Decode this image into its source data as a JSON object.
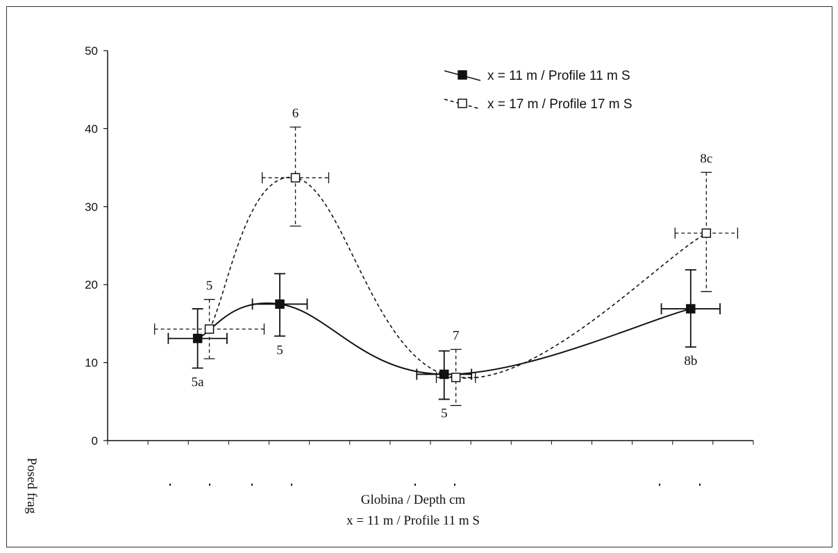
{
  "chart_data": {
    "type": "scatter",
    "title": "",
    "xlabel": "Globina / Depth cm",
    "xlabel_sub": "x = 11 m / Profile 11 m S",
    "ylabel": "Posed frag",
    "ylim": [
      0,
      50
    ],
    "yticks": [
      "0",
      "10",
      "20",
      "30",
      "40",
      "50"
    ],
    "grid": false,
    "legend_position": "top-right",
    "series": [
      {
        "name": "x = 11 m / Profile 11 m S",
        "style": "solid",
        "marker": "filled-square",
        "color": "#111111",
        "points": [
          {
            "x": 2.3,
            "y": 13.1,
            "xerr": 0.75,
            "y_low": 9.3,
            "y_high": 16.9,
            "label": "5a",
            "label_pos": "below"
          },
          {
            "x": 4.4,
            "y": 17.5,
            "xerr": 0.7,
            "y_low": 13.4,
            "y_high": 21.4,
            "label": "5",
            "label_pos": "below"
          },
          {
            "x": 8.6,
            "y": 8.5,
            "xerr": 0.7,
            "y_low": 5.3,
            "y_high": 11.5,
            "label": "5",
            "label_pos": "below"
          },
          {
            "x": 14.9,
            "y": 16.9,
            "xerr": 0.75,
            "y_low": 12.0,
            "y_high": 21.9,
            "label": "8b",
            "label_pos": "below"
          }
        ]
      },
      {
        "name": "x = 17 m / Profile 17 m S",
        "style": "dashed",
        "marker": "open-square",
        "color": "#111111",
        "points": [
          {
            "x": 2.6,
            "y": 14.3,
            "xerr": 1.4,
            "y_low": 10.5,
            "y_high": 18.1,
            "label": "5",
            "label_pos": "above"
          },
          {
            "x": 4.8,
            "y": 33.7,
            "xerr": 0.85,
            "y_low": 27.5,
            "y_high": 40.2,
            "label": "6",
            "label_pos": "above"
          },
          {
            "x": 8.9,
            "y": 8.1,
            "xerr": 0.5,
            "y_low": 4.5,
            "y_high": 11.7,
            "label": "7",
            "label_pos": "above"
          },
          {
            "x": 15.3,
            "y": 26.6,
            "xerr": 0.8,
            "y_low": 19.1,
            "y_high": 34.4,
            "label": "8c",
            "label_pos": "above"
          }
        ]
      }
    ]
  }
}
